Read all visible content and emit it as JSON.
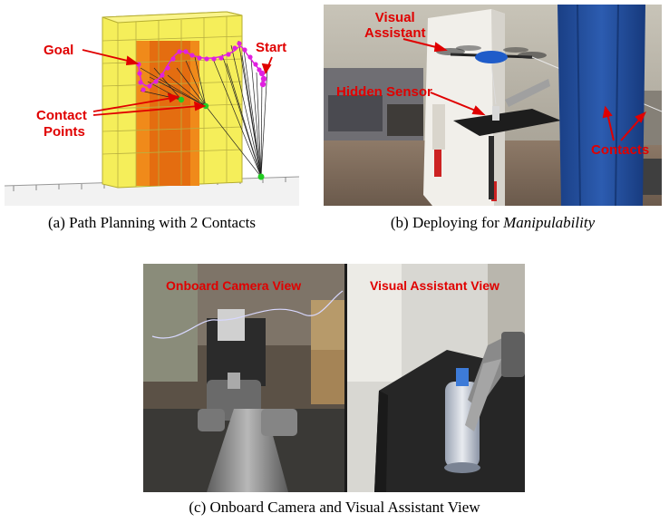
{
  "figure": {
    "panel_a": {
      "caption": "(a) Path Planning with 2 Contacts",
      "labels": {
        "goal": "Goal",
        "start": "Start",
        "contact_line1": "Contact",
        "contact_line2": "Points"
      }
    },
    "panel_b": {
      "caption_prefix": "(b) Deploying for ",
      "caption_italic": "Manipulability",
      "labels": {
        "visual_line1": "Visual",
        "visual_line2": "Assistant",
        "hidden_sensor": "Hidden Sensor",
        "contacts": "Contacts"
      }
    },
    "panel_c": {
      "caption": "(c) Onboard Camera and Visual Assistant View",
      "labels": {
        "onboard": "Onboard Camera View",
        "assistant": "Visual Assistant View"
      }
    }
  },
  "colors": {
    "label_red": "#e00000",
    "path_magenta": "#e020e0",
    "contact_green": "#22cc22",
    "curtain_blue": "#1f4fa0",
    "yellow_box": "#f5ee5a",
    "orange_core": "#f08a1a"
  }
}
